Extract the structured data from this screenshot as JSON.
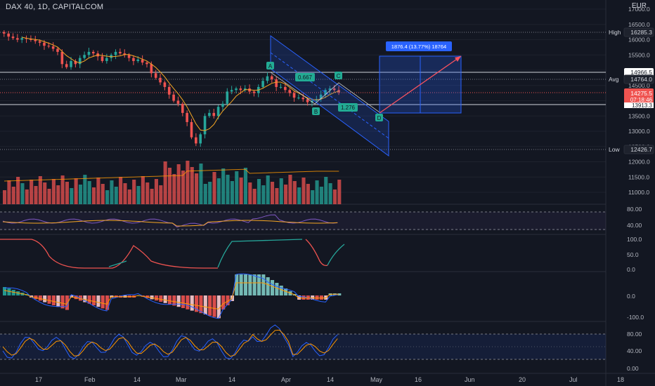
{
  "header": {
    "title": "DAX 40, 1D, CAPITALCOM",
    "currency": "EUR"
  },
  "colors": {
    "up": "#26a69a",
    "down": "#ef5350",
    "background": "#131722",
    "grid": "#2a2e39",
    "blue": "#2962ff",
    "text": "#b2b5be"
  },
  "price_axis": {
    "ticks": [
      "17000.0",
      "16500.0",
      "16000.0",
      "15500.0",
      "15000.0",
      "14500.0",
      "14000.0",
      "13500.0",
      "13000.0",
      "12500.0",
      "12000.0",
      "11500.0",
      "11000.0"
    ]
  },
  "time_axis": {
    "ticks": [
      "17",
      "Feb",
      "14",
      "Mar",
      "14",
      "Apr",
      "14",
      "May",
      "16",
      "Jun",
      "20",
      "Jul",
      "18"
    ]
  },
  "levels": {
    "high": {
      "label": "High",
      "value": "16285.3"
    },
    "avg": {
      "label": "Avg",
      "value": "14764.0"
    },
    "low": {
      "label": "Low",
      "value": "12426.7"
    },
    "line1": {
      "value": "14966.5"
    },
    "line2": {
      "value": "13913.3"
    },
    "last": {
      "price": "14275.5",
      "countdown": "07:18:46"
    }
  },
  "abcd": {
    "points": [
      "A",
      "B",
      "C",
      "D"
    ],
    "ratio1": "0.667",
    "ratio2": "1.276"
  },
  "projection": {
    "label": "1876.4 (13.77%) 18764"
  },
  "indicators": {
    "rsi_ticks": [
      "80.00",
      "40.00"
    ],
    "stoch_ticks": [
      "100.0",
      "50.0",
      "0.0"
    ],
    "macd_ticks": [
      "0.0",
      "-100.0"
    ],
    "osc_ticks": [
      "80.00",
      "40.00",
      "0.00"
    ]
  },
  "chart_data": {
    "type": "candlestick",
    "symbol": "DAX 40",
    "interval": "1D",
    "x": [
      "Jan 5",
      "Jan 6",
      "Jan 7",
      "Jan 10",
      "Jan 11",
      "Jan 12",
      "Jan 13",
      "Jan 14",
      "Jan 17",
      "Jan 18",
      "Jan 19",
      "Jan 20",
      "Jan 21",
      "Jan 24",
      "Jan 25",
      "Jan 26",
      "Jan 27",
      "Jan 28",
      "Jan 31",
      "Feb 1",
      "Feb 2",
      "Feb 3",
      "Feb 4",
      "Feb 7",
      "Feb 8",
      "Feb 9",
      "Feb 10",
      "Feb 11",
      "Feb 14",
      "Feb 15",
      "Feb 16",
      "Feb 17",
      "Feb 18",
      "Feb 21",
      "Feb 22",
      "Feb 23",
      "Feb 24",
      "Feb 25",
      "Feb 28",
      "Mar 1",
      "Mar 2",
      "Mar 3",
      "Mar 4",
      "Mar 7",
      "Mar 8",
      "Mar 9",
      "Mar 10",
      "Mar 11",
      "Mar 14",
      "Mar 15",
      "Mar 16",
      "Mar 17",
      "Mar 18",
      "Mar 21",
      "Mar 22",
      "Mar 23",
      "Mar 24",
      "Mar 25",
      "Mar 28",
      "Mar 29",
      "Mar 30",
      "Mar 31",
      "Apr 1",
      "Apr 4",
      "Apr 5",
      "Apr 6",
      "Apr 7",
      "Apr 8",
      "Apr 11",
      "Apr 12",
      "Apr 13",
      "Apr 14",
      "Apr 18",
      "Apr 19",
      "Apr 20",
      "Apr 21"
    ],
    "open": [
      16250,
      16200,
      16100,
      16050,
      16000,
      16050,
      16030,
      15990,
      15950,
      15900,
      15800,
      15780,
      15700,
      15600,
      15200,
      15100,
      15300,
      15200,
      15400,
      15500,
      15600,
      15550,
      15450,
      15300,
      15400,
      15500,
      15600,
      15550,
      15500,
      15400,
      15300,
      15350,
      15250,
      15200,
      14900,
      14750,
      14600,
      14450,
      14200,
      14000,
      13900,
      13600,
      13300,
      12800,
      12600,
      12900,
      13500,
      13600,
      13500,
      13800,
      13900,
      14300,
      14350,
      14400,
      14350,
      14400,
      14300,
      14250,
      14450,
      14650,
      14800,
      14700,
      14450,
      14450,
      14350,
      14250,
      14100,
      14100,
      14050,
      13950,
      14000,
      14050,
      14200,
      14350,
      14400,
      14350
    ],
    "close": [
      16200,
      16100,
      16050,
      16000,
      16050,
      16030,
      15990,
      15950,
      15900,
      15800,
      15780,
      15700,
      15600,
      15200,
      15100,
      15300,
      15200,
      15400,
      15500,
      15600,
      15550,
      15450,
      15300,
      15400,
      15500,
      15600,
      15550,
      15500,
      15400,
      15300,
      15350,
      15250,
      15200,
      14900,
      14750,
      14600,
      14450,
      14200,
      14000,
      13900,
      13600,
      13300,
      12800,
      12600,
      12900,
      13500,
      13600,
      13500,
      13800,
      13900,
      14300,
      14350,
      14400,
      14350,
      14400,
      14300,
      14250,
      14450,
      14650,
      14800,
      14700,
      14450,
      14450,
      14350,
      14250,
      14100,
      14100,
      14050,
      13950,
      14000,
      14050,
      14200,
      14350,
      14400,
      14350,
      14275.5
    ],
    "y_range": [
      10700,
      17100
    ],
    "high_value": 16285.3,
    "low_value": 12426.7,
    "avg_value": 14764.0,
    "pattern_points": {
      "A": 14800,
      "B": 13950,
      "C": 14400,
      "D": 13550
    },
    "projection": {
      "from": 13650,
      "to": 15527,
      "change": 1876.4,
      "percent": 13.77
    }
  }
}
